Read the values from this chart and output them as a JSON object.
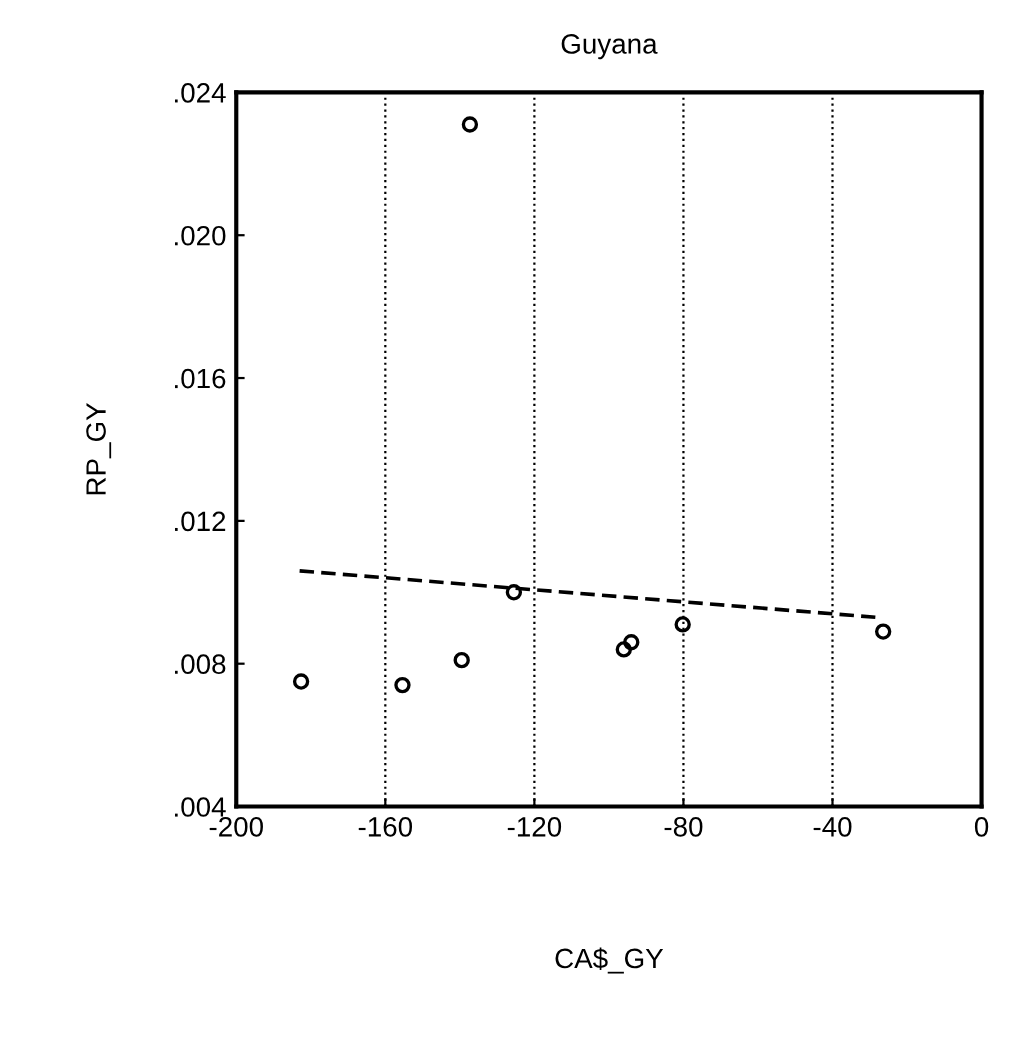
{
  "chart_data": {
    "type": "scatter",
    "title": "Guyana",
    "xlabel": "CA$_GY",
    "ylabel": "RP_GY",
    "series": [
      {
        "color": "#000000",
        "marker": "circle",
        "x": [
          -182.6,
          -155.4,
          -139.5,
          -137.3,
          -125.5,
          -96,
          -94,
          -80.2,
          -26.4
        ],
        "values": [
          0.0075,
          0.0074,
          0.0081,
          0.0231,
          0.01,
          0.0084,
          0.0086,
          0.0091,
          0.0089
        ]
      },
      {
        "type": "line",
        "color": "#000000",
        "line_style": "dashed",
        "marker": "none",
        "x": [
          -183,
          -28.5
        ],
        "values": [
          0.0106,
          0.0093
        ]
      }
    ],
    "xlim": [
      -200,
      0
    ],
    "xticks": [
      -200,
      -160,
      -120,
      -80,
      -40,
      0
    ],
    "ylim": [
      0.004,
      0.024
    ],
    "yticks": [
      {
        "value": 0.004,
        "label": ".004"
      },
      {
        "value": 0.008,
        "label": ".008"
      },
      {
        "value": 0.012,
        "label": ".012"
      },
      {
        "value": 0.016,
        "label": ".016"
      },
      {
        "value": 0.02,
        "label": ".020"
      },
      {
        "value": 0.024,
        "label": ".024"
      }
    ],
    "grid": "x",
    "legend": false
  }
}
